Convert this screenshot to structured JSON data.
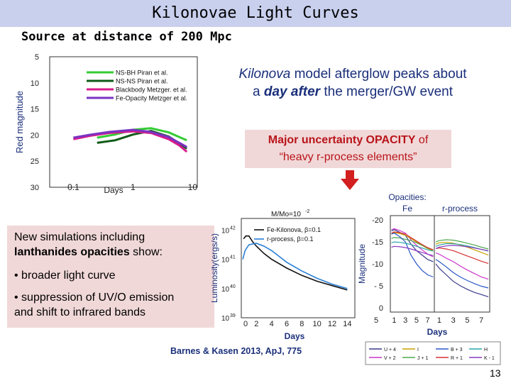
{
  "slide": {
    "title": "Kilonovae Light Curves",
    "subtitle": "Source at distance of 200 Mpc",
    "slide_number": "13",
    "citation": "Barnes & Kasen 2013,  ApJ, 775"
  },
  "afterglow_text": {
    "part1": "Kilonova",
    "part2": " model afterglow peaks about",
    "part3": "a ",
    "part4": "day after",
    "part5": " the merger/GW event"
  },
  "opacity_box": {
    "line1_bold": "Major uncertainty OPACITY",
    "line1_rest": " of",
    "line2": "“heavy r-process elements”"
  },
  "simulation_box": {
    "intro_part1": "New simulations including",
    "intro_bold": "lanthanides opacities",
    "intro_part2": " show:",
    "bullet1": "• broader light curve",
    "bullet2": "• suppression of UV/O emission",
    "bullet2_cont": "and shift to infrared bands"
  },
  "colors": {
    "title_bar": "#c9d0ee",
    "accent_box": "#f1d8d8",
    "accent_text": "#b8141a",
    "afterglow_text": "#1a2f7a",
    "arrow": "#d21f1f"
  },
  "chart_data": [
    {
      "type": "line",
      "ylabel": "Red  magnitude",
      "xlabel": "Days",
      "x_ticks": [
        "0.1",
        "1",
        "10"
      ],
      "y_ticks": [
        "5",
        "10",
        "15",
        "20",
        "25",
        "30"
      ],
      "xscale": "log",
      "xlim": [
        0.04,
        12
      ],
      "ylim": [
        5,
        30
      ],
      "y_inverted": true,
      "legend": "top-left",
      "series": [
        {
          "name": "NS-BH Piran et al.",
          "color": "#33cc33",
          "x": [
            0.25,
            0.5,
            1,
            2,
            4,
            6,
            8
          ],
          "y": [
            20.5,
            19.9,
            19.0,
            18.7,
            19.5,
            20.4,
            21.0
          ]
        },
        {
          "name": "NS-NS Piran et al.",
          "color": "#0e5a16",
          "x": [
            0.25,
            0.5,
            1,
            2,
            4,
            6,
            8
          ],
          "y": [
            21.5,
            21.0,
            19.9,
            19.2,
            20.3,
            21.6,
            22.6
          ]
        },
        {
          "name": "Blackbody  Metzger. et al.",
          "color": "#d81a8c",
          "x": [
            0.1,
            0.2,
            0.4,
            1,
            2,
            4,
            6,
            8
          ],
          "y": [
            20.8,
            20.1,
            19.6,
            19.3,
            19.6,
            20.8,
            22.0,
            23.2
          ]
        },
        {
          "name": "Fe-Opacity Metzger et al.",
          "color": "#7a33c2",
          "x": [
            0.1,
            0.2,
            0.4,
            1,
            2,
            4,
            6,
            8
          ],
          "y": [
            20.5,
            19.9,
            19.4,
            19.0,
            19.4,
            20.4,
            21.5,
            22.3
          ]
        }
      ]
    },
    {
      "type": "line",
      "title": "M/Mo=10",
      "title_sup": "-2",
      "ylabel": "Luminosity(ergs/s)",
      "xlabel": "Days",
      "x_ticks": [
        "0",
        "2",
        "4",
        "6",
        "8",
        "10",
        "12",
        "14"
      ],
      "y_ticks": [
        "10",
        "10",
        "10",
        "10"
      ],
      "y_tick_exps": [
        "42",
        "41",
        "40",
        "39"
      ],
      "xlim": [
        0,
        15
      ],
      "ylim_log10": [
        39,
        42.4
      ],
      "legend": "top-right",
      "series": [
        {
          "name": "Fe-Kilonova, β=0.1",
          "color": "#111111",
          "x": [
            0.3,
            0.6,
            1,
            1.5,
            2,
            3,
            4,
            6,
            8,
            10,
            12,
            14
          ],
          "y_log10": [
            41.7,
            41.8,
            41.8,
            41.6,
            41.45,
            41.2,
            41.0,
            40.7,
            40.45,
            40.25,
            40.1,
            39.95
          ]
        },
        {
          "name": "r-process, β=0.1",
          "color": "#2a7fd6",
          "x": [
            0.2,
            0.5,
            1,
            2,
            3,
            4,
            5,
            6,
            8,
            10,
            12,
            14
          ],
          "y_log10": [
            41.0,
            41.3,
            41.5,
            41.55,
            41.45,
            41.3,
            41.1,
            40.9,
            40.6,
            40.35,
            40.15,
            40.0
          ]
        }
      ]
    },
    {
      "type": "line",
      "title": "Opacities:",
      "panel_labels": [
        "Fe",
        "r-process"
      ],
      "ylabel": "Magnitude",
      "xlabel": "Days",
      "x_ticks": [
        "1",
        "3",
        "5",
        "7",
        "1",
        "3",
        "5",
        "7"
      ],
      "y_ticks": [
        "-20",
        "-15",
        "-10",
        "- 5",
        "0"
      ],
      "ylim": [
        -21,
        1
      ],
      "y_inverted": true,
      "series": [
        {
          "name": "U + 4",
          "color": "#3a3a8c",
          "panel": "Fe",
          "x": [
            0.5,
            1,
            2,
            3,
            4,
            5,
            6,
            7,
            8
          ],
          "y": [
            -17.5,
            -17.8,
            -17.2,
            -16.5,
            -14.5,
            -13,
            -12,
            -11,
            -10.5
          ]
        },
        {
          "name": "V + 2",
          "color": "#cc33cc",
          "panel": "Fe",
          "x": [
            0.5,
            1,
            2,
            3,
            4,
            5,
            6,
            7,
            8
          ],
          "y": [
            -17.8,
            -18.0,
            -17.6,
            -17.0,
            -15.5,
            -14.2,
            -13.2,
            -12.2,
            -11.6
          ]
        },
        {
          "name": "I",
          "color": "#c8a000",
          "panel": "Fe",
          "x": [
            0.5,
            1,
            2,
            3,
            4,
            5,
            6,
            7,
            8
          ],
          "y": [
            -16.8,
            -17.1,
            -16.9,
            -16.5,
            -15.8,
            -15.0,
            -14.2,
            -13.5,
            -13.0
          ]
        },
        {
          "name": "J + 1",
          "color": "#4fa84f",
          "panel": "Fe",
          "x": [
            0.5,
            1,
            2,
            3,
            4,
            5,
            6,
            7,
            8
          ],
          "y": [
            -15.8,
            -16.0,
            -15.9,
            -15.6,
            -15.3,
            -14.8,
            -14.2,
            -13.6,
            -13.2
          ]
        },
        {
          "name": "B + 3",
          "color": "#2a58c8",
          "panel": "Fe",
          "x": [
            0.5,
            1,
            2,
            3,
            4,
            5,
            6,
            7,
            8
          ],
          "y": [
            -16.8,
            -17.0,
            -16.2,
            -15.0,
            -12.0,
            -10.0,
            -8.5,
            -7.5,
            -7.0
          ]
        },
        {
          "name": "R + 1",
          "color": "#d83030",
          "panel": "Fe",
          "x": [
            0.5,
            1,
            2,
            3,
            4,
            5,
            6,
            7,
            8
          ],
          "y": [
            -17.0,
            -17.3,
            -17.1,
            -16.8,
            -16.0,
            -15.2,
            -14.4,
            -13.7,
            -13.2
          ]
        },
        {
          "name": "H",
          "color": "#2aa6a6",
          "panel": "Fe",
          "x": [
            0.5,
            1,
            2,
            3,
            4,
            5,
            6,
            7,
            8
          ],
          "y": [
            -14.8,
            -15.0,
            -14.9,
            -14.7,
            -14.4,
            -14.0,
            -13.6,
            -13.2,
            -12.9
          ]
        },
        {
          "name": "K - 1",
          "color": "#8a3ac2",
          "panel": "Fe",
          "x": [
            0.5,
            1,
            2,
            3,
            4,
            5,
            6,
            7,
            8
          ],
          "y": [
            -13.8,
            -14.0,
            -13.9,
            -13.7,
            -13.4,
            -13.0,
            -12.6,
            -12.2,
            -11.9
          ]
        },
        {
          "name": "U + 4",
          "color": "#3a3a8c",
          "panel": "r-process",
          "x": [
            0.5,
            1,
            2,
            3,
            4,
            5,
            6,
            7,
            8
          ],
          "y": [
            -10.0,
            -9.0,
            -7.5,
            -6.0,
            -5.0,
            -4.2,
            -3.5,
            -3.0,
            -2.5
          ]
        },
        {
          "name": "V + 2",
          "color": "#cc33cc",
          "panel": "r-process",
          "x": [
            0.5,
            1,
            2,
            3,
            4,
            5,
            6,
            7,
            8
          ],
          "y": [
            -12.5,
            -12.2,
            -11.3,
            -10.5,
            -9.5,
            -8.6,
            -7.8,
            -7.0,
            -6.5
          ]
        },
        {
          "name": "I",
          "color": "#c8a000",
          "panel": "r-process",
          "x": [
            0.5,
            1,
            2,
            3,
            4,
            5,
            6,
            7,
            8
          ],
          "y": [
            -14.5,
            -14.8,
            -14.9,
            -14.7,
            -14.3,
            -13.8,
            -13.2,
            -12.6,
            -12.0
          ]
        },
        {
          "name": "J + 1",
          "color": "#4fa84f",
          "panel": "r-process",
          "x": [
            0.5,
            1,
            2,
            3,
            4,
            5,
            6,
            7,
            8
          ],
          "y": [
            -15.0,
            -15.3,
            -15.5,
            -15.4,
            -15.1,
            -14.7,
            -14.3,
            -13.8,
            -13.4
          ]
        },
        {
          "name": "B + 3",
          "color": "#2a58c8",
          "panel": "r-process",
          "x": [
            0.5,
            1,
            2,
            3,
            4,
            5,
            6,
            7,
            8
          ],
          "y": [
            -11.0,
            -10.5,
            -9.3,
            -8.0,
            -7.0,
            -6.2,
            -5.5,
            -4.9,
            -4.5
          ]
        },
        {
          "name": "R + 1",
          "color": "#d83030",
          "panel": "r-process",
          "x": [
            0.5,
            1,
            2,
            3,
            4,
            5,
            6,
            7,
            8
          ],
          "y": [
            -13.5,
            -13.6,
            -13.4,
            -13.0,
            -12.4,
            -11.8,
            -11.2,
            -10.6,
            -10.1
          ]
        },
        {
          "name": "H",
          "color": "#2aa6a6",
          "panel": "r-process",
          "x": [
            0.5,
            1,
            2,
            3,
            4,
            5,
            6,
            7,
            8
          ],
          "y": [
            -14.0,
            -14.3,
            -14.6,
            -14.6,
            -14.4,
            -14.1,
            -13.7,
            -13.3,
            -12.9
          ]
        },
        {
          "name": "K - 1",
          "color": "#8a3ac2",
          "panel": "r-process",
          "x": [
            0.5,
            1,
            2,
            3,
            4,
            5,
            6,
            7,
            8
          ],
          "y": [
            -13.5,
            -13.8,
            -14.1,
            -14.2,
            -14.1,
            -13.9,
            -13.6,
            -13.3,
            -13.0
          ]
        }
      ],
      "legend": "bottom"
    }
  ]
}
